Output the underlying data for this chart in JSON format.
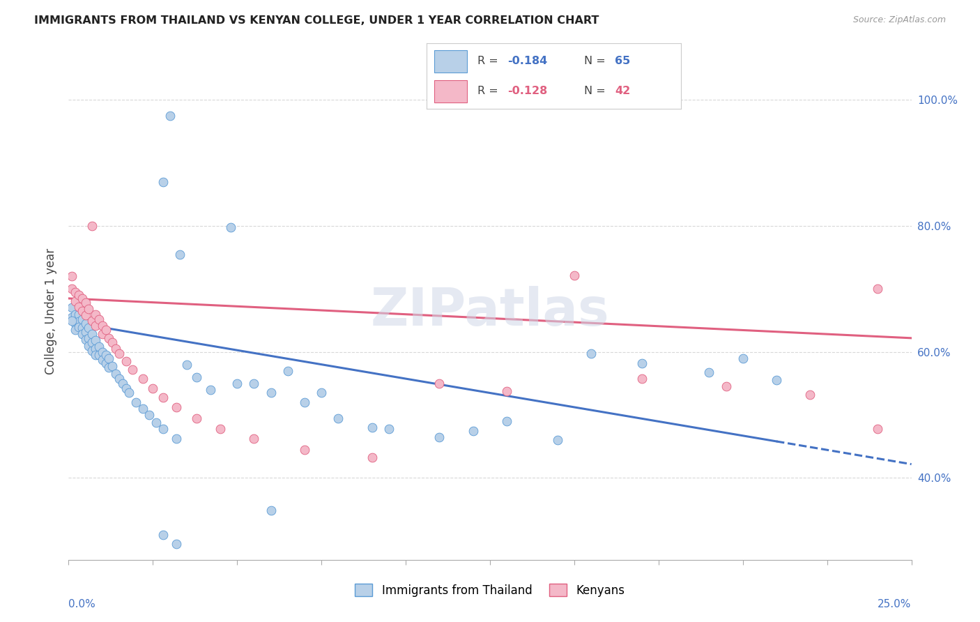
{
  "title": "IMMIGRANTS FROM THAILAND VS KENYAN COLLEGE, UNDER 1 YEAR CORRELATION CHART",
  "source": "Source: ZipAtlas.com",
  "ylabel": "College, Under 1 year",
  "y_tick_vals": [
    0.4,
    0.6,
    0.8,
    1.0
  ],
  "y_tick_labels": [
    "40.0%",
    "60.0%",
    "80.0%",
    "100.0%"
  ],
  "x_left_label": "0.0%",
  "x_right_label": "25.0%",
  "legend_r1": "-0.184",
  "legend_n1": "65",
  "legend_r2": "-0.128",
  "legend_n2": "42",
  "legend_label1": "Immigrants from Thailand",
  "legend_label2": "Kenyans",
  "color_blue_fill": "#b8d0e8",
  "color_blue_edge": "#5b9bd5",
  "color_pink_fill": "#f4b8c8",
  "color_pink_edge": "#e06080",
  "color_blue_line": "#4472c4",
  "color_pink_line": "#e06080",
  "color_text_blue": "#4472c4",
  "color_text_pink": "#e06080",
  "xmin": 0.0,
  "xmax": 0.25,
  "ymin": 0.27,
  "ymax": 1.06,
  "blue_x": [
    0.001,
    0.001,
    0.002,
    0.002,
    0.002,
    0.003,
    0.003,
    0.003,
    0.004,
    0.004,
    0.004,
    0.005,
    0.005,
    0.005,
    0.006,
    0.006,
    0.006,
    0.007,
    0.007,
    0.007,
    0.008,
    0.008,
    0.008,
    0.009,
    0.009,
    0.01,
    0.01,
    0.011,
    0.011,
    0.012,
    0.012,
    0.013,
    0.014,
    0.015,
    0.016,
    0.017,
    0.018,
    0.02,
    0.022,
    0.024,
    0.026,
    0.028,
    0.032,
    0.035,
    0.038,
    0.042,
    0.05,
    0.06,
    0.07,
    0.08,
    0.095,
    0.11,
    0.13,
    0.155,
    0.17,
    0.19,
    0.21,
    0.033,
    0.055,
    0.065,
    0.075,
    0.09,
    0.12,
    0.145,
    0.2
  ],
  "blue_y": [
    0.67,
    0.655,
    0.66,
    0.645,
    0.635,
    0.66,
    0.648,
    0.64,
    0.652,
    0.638,
    0.628,
    0.645,
    0.632,
    0.62,
    0.638,
    0.622,
    0.61,
    0.628,
    0.615,
    0.602,
    0.618,
    0.605,
    0.595,
    0.608,
    0.595,
    0.6,
    0.588,
    0.595,
    0.582,
    0.59,
    0.575,
    0.578,
    0.565,
    0.558,
    0.55,
    0.542,
    0.535,
    0.52,
    0.51,
    0.5,
    0.488,
    0.478,
    0.462,
    0.58,
    0.56,
    0.54,
    0.55,
    0.535,
    0.52,
    0.495,
    0.478,
    0.465,
    0.49,
    0.598,
    0.582,
    0.568,
    0.555,
    0.755,
    0.55,
    0.57,
    0.535,
    0.48,
    0.475,
    0.46,
    0.59
  ],
  "blue_y_outliers": [
    0.975,
    0.87,
    0.798,
    0.348,
    0.31,
    0.295,
    0.65
  ],
  "blue_x_outliers": [
    0.03,
    0.028,
    0.048,
    0.06,
    0.028,
    0.032,
    0.001
  ],
  "pink_x": [
    0.001,
    0.001,
    0.002,
    0.002,
    0.003,
    0.003,
    0.004,
    0.004,
    0.005,
    0.005,
    0.006,
    0.007,
    0.008,
    0.008,
    0.009,
    0.01,
    0.01,
    0.011,
    0.012,
    0.013,
    0.014,
    0.015,
    0.017,
    0.019,
    0.022,
    0.025,
    0.028,
    0.032,
    0.038,
    0.045,
    0.055,
    0.07,
    0.09,
    0.11,
    0.13,
    0.15,
    0.17,
    0.195,
    0.22,
    0.24,
    0.24,
    0.007
  ],
  "pink_y": [
    0.72,
    0.7,
    0.695,
    0.68,
    0.69,
    0.672,
    0.685,
    0.665,
    0.678,
    0.658,
    0.668,
    0.65,
    0.66,
    0.642,
    0.652,
    0.642,
    0.628,
    0.635,
    0.622,
    0.615,
    0.605,
    0.598,
    0.585,
    0.572,
    0.558,
    0.542,
    0.528,
    0.512,
    0.495,
    0.478,
    0.462,
    0.445,
    0.432,
    0.55,
    0.538,
    0.722,
    0.558,
    0.545,
    0.532,
    0.7,
    0.478,
    0.8
  ]
}
